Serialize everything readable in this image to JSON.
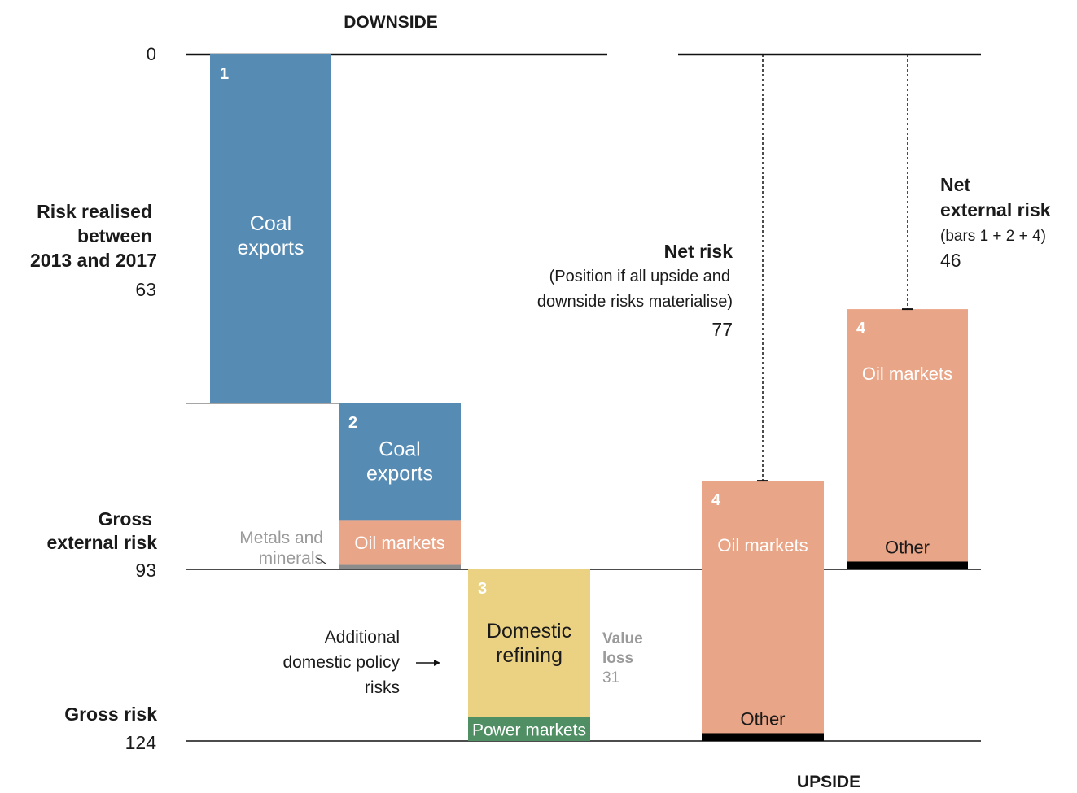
{
  "chart_data": {
    "type": "waterfall",
    "scale": {
      "y_top": 0,
      "y_bottom": 124
    },
    "headers": {
      "downside": "DOWNSIDE",
      "upside": "UPSIDE"
    },
    "colors": {
      "coal": "#568bb4",
      "oil": "#e9a587",
      "metals": "#8c8c8c",
      "refining": "#ebd283",
      "power": "#4f8f63",
      "other": "#000000"
    },
    "labels": {
      "zero": "0",
      "realised": [
        "Risk realised",
        "between",
        "2013 and 2017"
      ],
      "realised_value": "63",
      "gross_external": [
        "Gross",
        "external risk"
      ],
      "gross_external_value": "93",
      "gross": [
        "Gross risk"
      ],
      "gross_value": "124",
      "net_risk_title": "Net risk",
      "net_risk_desc": [
        "(Position if all upside and",
        "downside risks materialise)"
      ],
      "net_risk_value": "77",
      "net_ext_title": [
        "Net",
        "external risk"
      ],
      "net_ext_desc": "(bars 1 + 2 + 4)",
      "net_ext_value": "46",
      "metals_label": [
        "Metals and",
        "minerals"
      ],
      "additional": [
        "Additional",
        "domestic policy",
        "risks"
      ],
      "value_loss": [
        "Value",
        "loss"
      ],
      "value_loss_value": "31"
    },
    "bars": [
      {
        "id": "bar-1",
        "number": "1",
        "side": "downside",
        "segments": [
          {
            "name": "Coal exports",
            "label": [
              "Coal",
              "exports"
            ],
            "from": 0,
            "to": 63,
            "color": "coal"
          }
        ]
      },
      {
        "id": "bar-2",
        "number": "2",
        "side": "downside",
        "segments": [
          {
            "name": "Coal exports",
            "label": [
              "Coal",
              "exports"
            ],
            "from": 63,
            "to": 84.1,
            "color": "coal"
          },
          {
            "name": "Oil markets",
            "label": [
              "Oil markets"
            ],
            "from": 84.1,
            "to": 92.2,
            "color": "oil"
          },
          {
            "name": "Metals and minerals",
            "label": [],
            "from": 92.2,
            "to": 93,
            "color": "metals"
          }
        ]
      },
      {
        "id": "bar-3",
        "number": "3",
        "side": "downside",
        "segments": [
          {
            "name": "Domestic refining",
            "label": [
              "Domestic",
              "refining"
            ],
            "from": 93,
            "to": 119.7,
            "color": "refining"
          },
          {
            "name": "Power markets",
            "label": [
              "Power markets"
            ],
            "from": 119.7,
            "to": 124,
            "color": "power"
          }
        ]
      },
      {
        "id": "bar-4a",
        "number": "4",
        "side": "upside",
        "segments": [
          {
            "name": "Oil markets",
            "label": [
              "Oil markets"
            ],
            "from": 77,
            "to": 122.6,
            "color": "oil"
          },
          {
            "name": "Other",
            "label": [
              "Other"
            ],
            "from": 122.6,
            "to": 124,
            "color": "other"
          }
        ]
      },
      {
        "id": "bar-4b",
        "number": "4",
        "side": "upside",
        "segments": [
          {
            "name": "Oil markets",
            "label": [
              "Oil markets"
            ],
            "from": 46,
            "to": 91.6,
            "color": "oil"
          },
          {
            "name": "Other",
            "label": [
              "Other"
            ],
            "from": 91.6,
            "to": 93,
            "color": "other"
          }
        ]
      }
    ]
  }
}
